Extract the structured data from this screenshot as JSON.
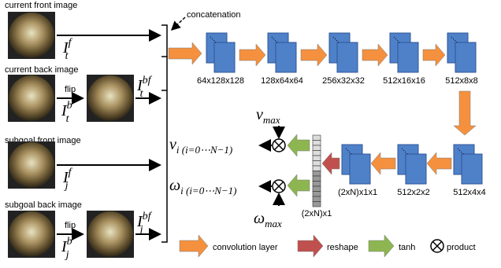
{
  "inputs": [
    {
      "title": "current front image",
      "symbol": {
        "base": "I",
        "sub": "t",
        "sup": "f"
      }
    },
    {
      "title": "current back image",
      "flip": "flip",
      "symbol": {
        "base": "I",
        "sub": "t",
        "sup": "b"
      },
      "flipped_symbol": {
        "base": "I",
        "sub": "t",
        "sup": "bf"
      }
    },
    {
      "title": "subgoal front image",
      "symbol": {
        "base": "I",
        "sub": "j",
        "sup": "f"
      }
    },
    {
      "title": "subgoal back image",
      "flip": "flip",
      "symbol": {
        "base": "I",
        "sub": "j",
        "sup": "b"
      },
      "flipped_symbol": {
        "base": "I",
        "sub": "j",
        "sup": "bf"
      }
    }
  ],
  "concatenation": "concatenation",
  "layers": [
    "64x128x128",
    "128x64x64",
    "256x32x32",
    "512x16x16",
    "512x8x8",
    "512x4x4",
    "512x2x2",
    "(2xN)x1x1"
  ],
  "vector": "(2xN)x1",
  "outputs": {
    "v_max": {
      "base": "v",
      "sub": "max"
    },
    "v_i": {
      "base": "v",
      "sub": "i (i=0⋯N−1)"
    },
    "w_i": {
      "base": "ω",
      "sub": "i (i=0⋯N−1)"
    },
    "w_max": {
      "base": "ω",
      "sub": "max"
    }
  },
  "legend": [
    "convolution layer",
    "reshape",
    "tanh",
    "product"
  ]
}
